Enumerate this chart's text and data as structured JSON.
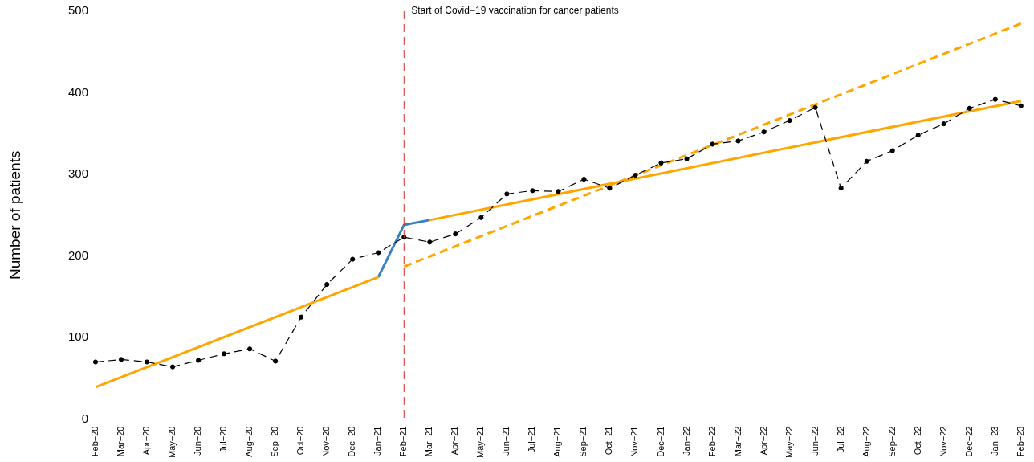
{
  "chart_data": {
    "type": "line",
    "ylabel": "Number of patients",
    "categories": [
      "Feb−20",
      "Mar−20",
      "Apr−20",
      "May−20",
      "Jun−20",
      "Jul−20",
      "Aug−20",
      "Sep−20",
      "Oct−20",
      "Nov−20",
      "Dec−20",
      "Jan−21",
      "Feb−21",
      "Mar−21",
      "Apr−21",
      "May−21",
      "Jun−21",
      "Jul−21",
      "Aug−21",
      "Sep−21",
      "Oct−21",
      "Nov−21",
      "Dec−21",
      "Jan−22",
      "Feb−22",
      "Mar−22",
      "Apr−22",
      "May−22",
      "Jun−22",
      "Jul−22",
      "Aug−22",
      "Sep−22",
      "Oct−22",
      "Nov−22",
      "Dec−22",
      "Jan−23",
      "Feb−23"
    ],
    "series": [
      {
        "color": "#000000",
        "line_style": "dashed",
        "marker": "circle",
        "values": [
          70,
          73,
          70,
          64,
          72,
          80,
          86,
          71,
          125,
          165,
          196,
          204,
          223,
          217,
          227,
          247,
          276,
          280,
          279,
          294,
          283,
          299,
          314,
          319,
          337,
          341,
          352,
          366,
          382,
          283,
          316,
          329,
          348,
          362,
          381,
          392,
          384
        ]
      },
      {
        "color": "#ffa500",
        "line_style": "solid",
        "marker": "none",
        "values": [
          39,
          null,
          null,
          null,
          null,
          null,
          null,
          null,
          null,
          null,
          null,
          174,
          null,
          null,
          null,
          null,
          null,
          null,
          null,
          null,
          null,
          null,
          null,
          null,
          null,
          null,
          null,
          null,
          null,
          null,
          null,
          null,
          null,
          null,
          null,
          null,
          null
        ]
      },
      {
        "color": "#3a7fc0",
        "line_style": "solid",
        "marker": "none",
        "values": [
          null,
          null,
          null,
          null,
          null,
          null,
          null,
          null,
          null,
          null,
          null,
          174,
          238,
          244,
          null,
          null,
          null,
          null,
          null,
          null,
          null,
          null,
          null,
          null,
          null,
          null,
          null,
          null,
          null,
          null,
          null,
          null,
          null,
          null,
          null,
          null,
          null
        ]
      },
      {
        "color": "#ffa500",
        "line_style": "solid",
        "marker": "none",
        "values": [
          null,
          null,
          null,
          null,
          null,
          null,
          null,
          null,
          null,
          null,
          null,
          null,
          null,
          244,
          null,
          null,
          null,
          null,
          null,
          null,
          null,
          null,
          null,
          null,
          null,
          null,
          null,
          null,
          null,
          null,
          null,
          null,
          null,
          null,
          null,
          null,
          390
        ]
      },
      {
        "color": "#ffa500",
        "line_style": "dashed",
        "marker": "none",
        "values": [
          null,
          null,
          null,
          null,
          null,
          null,
          null,
          null,
          null,
          null,
          null,
          null,
          187,
          null,
          null,
          null,
          null,
          null,
          null,
          null,
          null,
          null,
          null,
          null,
          null,
          null,
          null,
          null,
          null,
          null,
          null,
          null,
          null,
          null,
          null,
          null,
          485
        ]
      }
    ],
    "ylim": [
      0,
      500
    ],
    "yticks": [
      0,
      100,
      200,
      300,
      400,
      500
    ],
    "grid": false,
    "legend": false,
    "ref_lines": [
      {
        "axis": "x",
        "value": "Feb−21",
        "label": "Start of Covid−19 vaccination for cancer patients",
        "color": "#d62728",
        "line_style": "dashed"
      }
    ]
  }
}
